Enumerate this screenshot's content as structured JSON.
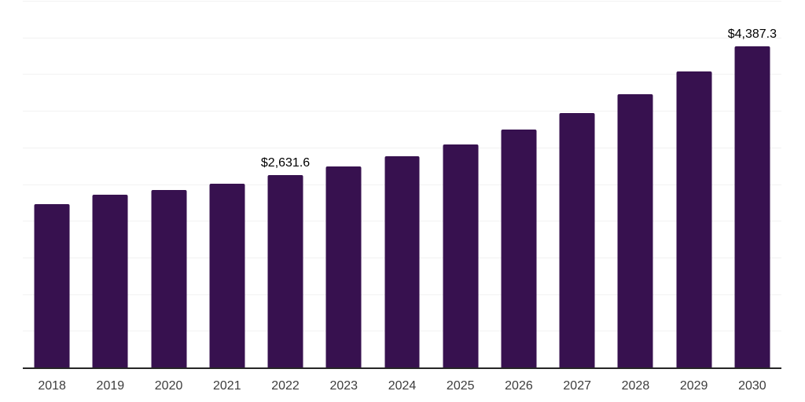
{
  "chart_data": {
    "type": "bar",
    "title": "",
    "xlabel": "",
    "ylabel": "",
    "categories": [
      "2018",
      "2019",
      "2020",
      "2021",
      "2022",
      "2023",
      "2024",
      "2025",
      "2026",
      "2027",
      "2028",
      "2029",
      "2030"
    ],
    "values": [
      2235,
      2370,
      2430,
      2520,
      2631.6,
      2750,
      2895,
      3055,
      3250,
      3475,
      3735,
      4045,
      4387.3
    ],
    "value_labels": {
      "2022": "$2,631.6",
      "2030": "$4,387.3"
    },
    "ylim": [
      0,
      5000
    ],
    "gridline_step": 500,
    "grid": "horizontal",
    "legend": "none",
    "colors": {
      "bar": "#37114F",
      "gridline": "#f2f2f2",
      "axis_line": "#262626",
      "tick_label": "#3d3d3d",
      "data_label": "#000000",
      "background": "#ffffff"
    }
  }
}
